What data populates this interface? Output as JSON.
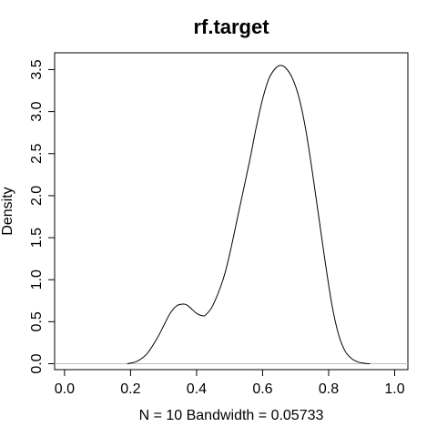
{
  "chart_data": {
    "type": "line",
    "title": "rf.target",
    "xlabel": "N = 10   Bandwidth = 0.05733",
    "ylabel": "Density",
    "xlim": [
      -0.03,
      1.04
    ],
    "ylim": [
      -0.07,
      3.7
    ],
    "xticks": [
      0.0,
      0.2,
      0.4,
      0.6,
      0.8,
      1.0
    ],
    "xtick_labels": [
      "0.0",
      "0.2",
      "0.4",
      "0.6",
      "0.8",
      "1.0"
    ],
    "yticks": [
      0.0,
      0.5,
      1.0,
      1.5,
      2.0,
      2.5,
      3.0,
      3.5
    ],
    "ytick_labels": [
      "0.0",
      "0.5",
      "1.0",
      "1.5",
      "2.0",
      "2.5",
      "3.0",
      "3.5"
    ],
    "grid": false,
    "zero_line": true,
    "series": [
      {
        "x": [
          0.19,
          0.22,
          0.25,
          0.28,
          0.3,
          0.32,
          0.34,
          0.36,
          0.37,
          0.38,
          0.4,
          0.42,
          0.43,
          0.45,
          0.48,
          0.5,
          0.53,
          0.56,
          0.58,
          0.6,
          0.62,
          0.64,
          0.655,
          0.67,
          0.69,
          0.71,
          0.73,
          0.75,
          0.77,
          0.79,
          0.81,
          0.83,
          0.85,
          0.87,
          0.89,
          0.91,
          0.925
        ],
        "y": [
          0.0,
          0.03,
          0.12,
          0.3,
          0.45,
          0.6,
          0.69,
          0.71,
          0.7,
          0.67,
          0.6,
          0.57,
          0.59,
          0.7,
          1.0,
          1.3,
          1.85,
          2.4,
          2.8,
          3.15,
          3.4,
          3.52,
          3.55,
          3.52,
          3.4,
          3.17,
          2.8,
          2.3,
          1.75,
          1.2,
          0.7,
          0.35,
          0.15,
          0.06,
          0.02,
          0.005,
          0.0
        ]
      }
    ]
  }
}
